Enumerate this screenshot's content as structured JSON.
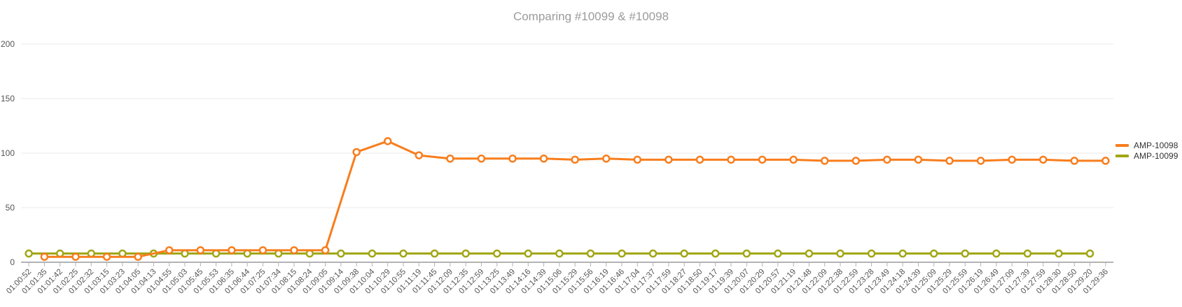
{
  "title": "Comparing #10099 & #10098",
  "colors": {
    "series_amp_10098": "#f87d1c",
    "series_amp_10099": "#a1a614",
    "title_text": "#9b9b9b",
    "axis_text": "#555555",
    "grid_line": "#e8e8e8",
    "axis_line": "#b3b3b3",
    "tick_mark": "#b3b3b3",
    "legend_text": "#333333",
    "marker_fill": "#ffffff"
  },
  "legend": {
    "items": [
      {
        "label": "AMP-10098",
        "color": "#f87d1c"
      },
      {
        "label": "AMP-10099",
        "color": "#a1a614"
      }
    ]
  },
  "chart_data": {
    "type": "line",
    "title": "Comparing #10099 & #10098",
    "xlabel": "",
    "ylabel": "",
    "ylim": [
      0,
      200
    ],
    "y_ticks": [
      0,
      50,
      100,
      150,
      200
    ],
    "grid": "horizontal",
    "legend_position": "right",
    "marker": "open-circle",
    "categories": [
      "01:00:52",
      "01:01:35",
      "01:01:42",
      "01:02:25",
      "01:02:32",
      "01:03:15",
      "01:03:23",
      "01:04:05",
      "01:04:13",
      "01:04:55",
      "01:05:03",
      "01:05:45",
      "01:05:53",
      "01:06:35",
      "01:06:44",
      "01:07:25",
      "01:07:34",
      "01:08:15",
      "01:08:24",
      "01:09:05",
      "01:09:14",
      "01:09:38",
      "01:10:04",
      "01:10:29",
      "01:10:55",
      "01:11:19",
      "01:11:45",
      "01:12:09",
      "01:12:35",
      "01:12:59",
      "01:13:25",
      "01:13:49",
      "01:14:16",
      "01:14:39",
      "01:15:06",
      "01:15:29",
      "01:15:56",
      "01:16:19",
      "01:16:46",
      "01:17:04",
      "01:17:37",
      "01:17:59",
      "01:18:27",
      "01:18:50",
      "01:19:17",
      "01:19:39",
      "01:20:07",
      "01:20:29",
      "01:20:57",
      "01:21:19",
      "01:21:48",
      "01:22:09",
      "01:22:38",
      "01:22:59",
      "01:23:28",
      "01:23:49",
      "01:24:18",
      "01:24:39",
      "01:25:09",
      "01:25:29",
      "01:25:59",
      "01:26:19",
      "01:26:49",
      "01:27:09",
      "01:27:39",
      "01:27:59",
      "01:28:30",
      "01:28:50",
      "01:29:20",
      "01:29:36"
    ],
    "series": [
      {
        "name": "AMP-10099",
        "color": "#a1a614",
        "x": [
          "01:00:52",
          "01:01:42",
          "01:02:32",
          "01:03:23",
          "01:04:13",
          "01:05:03",
          "01:05:53",
          "01:06:44",
          "01:07:34",
          "01:08:24",
          "01:09:14",
          "01:10:04",
          "01:10:55",
          "01:11:45",
          "01:12:35",
          "01:13:25",
          "01:14:16",
          "01:15:06",
          "01:15:56",
          "01:16:46",
          "01:17:37",
          "01:18:27",
          "01:19:17",
          "01:20:07",
          "01:20:57",
          "01:21:48",
          "01:22:38",
          "01:23:28",
          "01:24:18",
          "01:25:09",
          "01:25:59",
          "01:26:49",
          "01:27:39",
          "01:28:30",
          "01:29:20"
        ],
        "values": [
          8,
          8,
          8,
          8,
          8,
          8,
          8,
          8,
          8,
          8,
          8,
          8,
          8,
          8,
          8,
          8,
          8,
          8,
          8,
          8,
          8,
          8,
          8,
          8,
          8,
          8,
          8,
          8,
          8,
          8,
          8,
          8,
          8,
          8,
          8
        ]
      },
      {
        "name": "AMP-10098",
        "color": "#f87d1c",
        "x": [
          "01:01:35",
          "01:02:25",
          "01:03:15",
          "01:04:05",
          "01:04:55",
          "01:05:45",
          "01:06:35",
          "01:07:25",
          "01:08:15",
          "01:09:05",
          "01:09:38",
          "01:10:29",
          "01:11:19",
          "01:12:09",
          "01:12:59",
          "01:13:49",
          "01:14:39",
          "01:15:29",
          "01:16:19",
          "01:17:04",
          "01:17:59",
          "01:18:50",
          "01:19:39",
          "01:20:29",
          "01:21:19",
          "01:22:09",
          "01:22:59",
          "01:23:49",
          "01:24:39",
          "01:25:29",
          "01:26:19",
          "01:27:09",
          "01:27:59",
          "01:28:50",
          "01:29:36"
        ],
        "values": [
          5,
          5,
          5,
          5,
          11,
          11,
          11,
          11,
          11,
          11,
          101,
          111,
          98,
          95,
          95,
          95,
          95,
          94,
          95,
          94,
          94,
          94,
          94,
          94,
          94,
          93,
          93,
          94,
          94,
          93,
          93,
          94,
          94,
          93,
          93
        ]
      }
    ]
  }
}
